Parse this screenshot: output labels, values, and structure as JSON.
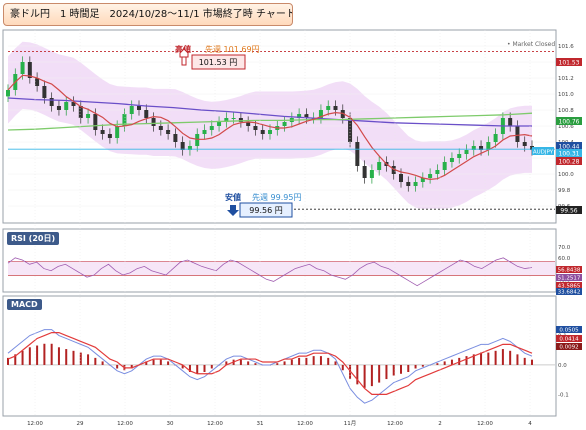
{
  "header": {
    "title": "豪ドル円　1 時間足　2024/10/28～11/1 市場終了時 チャート形状"
  },
  "market_status": "• Market Closed",
  "annotations": {
    "high": {
      "label": "高値",
      "prev_week": "先週 101.69円",
      "price_box": "101.53 円"
    },
    "low": {
      "label": "安値",
      "prev_week": "先週 99.95円",
      "price_box": "99.56 円"
    }
  },
  "right_tags": {
    "high_line": "101.53",
    "green": "100.76",
    "blue": "100.44",
    "ticker": "AUDJPY",
    "ticker_value": "100.31",
    "red": "100.28",
    "low_line": "99.56"
  },
  "rsi": {
    "label": "RSI (20日)",
    "tags": [
      "56.8438",
      "51.2517",
      "43.5865",
      "33.6842"
    ]
  },
  "macd": {
    "label": "MACD",
    "tags": [
      "0.0505",
      "0.0414",
      "0.0092"
    ]
  },
  "chart_data": [
    {
      "type": "candlestick",
      "title": "豪ドル円 1時間足",
      "x_ticks": [
        "12:00",
        "29",
        "12:00",
        "30",
        "12:00",
        "31",
        "12:00",
        "11月",
        "12:00",
        "2",
        "12:00",
        "4"
      ],
      "y_ticks": [
        99.6,
        99.8,
        100.0,
        100.2,
        100.4,
        100.6,
        100.8,
        101.0,
        101.2,
        101.4,
        101.6
      ],
      "ylim": [
        99.45,
        101.7
      ],
      "high_line": 101.53,
      "low_line": 99.56,
      "closes": [
        101.05,
        101.25,
        101.4,
        101.2,
        101.1,
        100.95,
        100.85,
        100.8,
        100.9,
        100.85,
        100.7,
        100.75,
        100.55,
        100.5,
        100.45,
        100.6,
        100.75,
        100.85,
        100.8,
        100.7,
        100.6,
        100.55,
        100.5,
        100.4,
        100.3,
        100.35,
        100.5,
        100.55,
        100.6,
        100.65,
        100.7,
        100.7,
        100.65,
        100.6,
        100.55,
        100.5,
        100.55,
        100.6,
        100.65,
        100.7,
        100.75,
        100.7,
        100.7,
        100.8,
        100.85,
        100.8,
        100.7,
        100.4,
        100.1,
        99.95,
        100.05,
        100.15,
        100.1,
        100.0,
        99.9,
        99.85,
        99.9,
        99.95,
        100.0,
        100.05,
        100.15,
        100.2,
        100.25,
        100.3,
        100.35,
        100.3,
        100.4,
        100.5,
        100.7,
        100.6,
        100.4,
        100.35,
        100.3
      ],
      "series": [
        {
          "name": "MA-blue",
          "values": [
            100.95,
            100.93,
            100.92,
            100.9,
            100.88,
            100.85,
            100.83,
            100.8,
            100.78,
            100.75,
            100.72,
            100.7,
            100.68,
            100.66,
            100.64,
            100.63,
            100.62,
            100.61,
            100.6,
            100.6
          ]
        },
        {
          "name": "MA-green",
          "values": [
            100.55,
            100.56,
            100.58,
            100.6,
            100.62,
            100.63,
            100.64,
            100.65,
            100.66,
            100.67,
            100.67,
            100.68,
            100.68,
            100.69,
            100.7,
            100.71,
            100.72,
            100.73,
            100.74,
            100.76
          ]
        }
      ]
    },
    {
      "type": "line",
      "title": "RSI (20日)",
      "ylim": [
        30,
        72
      ],
      "y_ticks": [
        30,
        40,
        50,
        60,
        70
      ],
      "values": [
        55,
        60,
        58,
        54,
        56,
        50,
        48,
        52,
        54,
        50,
        46,
        42,
        44,
        50,
        54,
        48,
        44,
        46,
        50,
        52,
        48,
        46,
        44,
        50,
        56,
        58,
        55,
        52,
        50,
        48,
        54,
        58,
        56,
        52,
        48,
        44,
        40,
        38,
        42,
        46,
        50,
        52,
        54,
        50,
        48,
        44,
        42,
        40,
        44,
        50,
        54,
        56,
        52,
        50,
        46,
        42,
        38,
        34,
        38,
        42,
        46,
        50,
        54,
        58,
        56,
        52,
        50,
        54,
        58,
        60,
        56,
        52,
        50,
        51
      ]
    },
    {
      "type": "bar",
      "title": "MACD",
      "ylim": [
        -0.16,
        0.18
      ],
      "y_ticks": [
        -0.1,
        0.0,
        0.1
      ],
      "values": [
        0.04,
        0.06,
        0.08,
        0.1,
        0.11,
        0.12,
        0.12,
        0.1,
        0.09,
        0.08,
        0.07,
        0.06,
        0.04,
        0.02,
        0.0,
        -0.02,
        -0.03,
        -0.02,
        0.0,
        0.02,
        0.03,
        0.03,
        0.02,
        0.0,
        -0.02,
        -0.04,
        -0.05,
        -0.04,
        -0.02,
        0.0,
        0.02,
        0.03,
        0.03,
        0.02,
        0.01,
        0.0,
        0.0,
        0.01,
        0.02,
        0.03,
        0.04,
        0.04,
        0.05,
        0.05,
        0.04,
        0.02,
        -0.03,
        -0.08,
        -0.11,
        -0.13,
        -0.12,
        -0.1,
        -0.08,
        -0.06,
        -0.05,
        -0.04,
        -0.02,
        -0.01,
        0.0,
        0.01,
        0.02,
        0.03,
        0.04,
        0.05,
        0.06,
        0.07,
        0.07,
        0.08,
        0.09,
        0.08,
        0.06,
        0.04,
        0.03
      ],
      "signal": [
        0.02,
        0.03,
        0.05,
        0.07,
        0.09,
        0.1,
        0.11,
        0.11,
        0.1,
        0.09,
        0.08,
        0.07,
        0.06,
        0.04,
        0.02,
        0.01,
        -0.01,
        -0.01,
        0.0,
        0.01,
        0.02,
        0.02,
        0.02,
        0.01,
        0.0,
        -0.02,
        -0.03,
        -0.03,
        -0.03,
        -0.02,
        0.0,
        0.01,
        0.02,
        0.02,
        0.02,
        0.01,
        0.01,
        0.01,
        0.02,
        0.02,
        0.03,
        0.03,
        0.04,
        0.04,
        0.04,
        0.03,
        0.01,
        -0.02,
        -0.05,
        -0.08,
        -0.1,
        -0.1,
        -0.1,
        -0.09,
        -0.08,
        -0.07,
        -0.05,
        -0.04,
        -0.03,
        -0.02,
        -0.01,
        0.0,
        0.01,
        0.02,
        0.03,
        0.04,
        0.05,
        0.06,
        0.07,
        0.07,
        0.06,
        0.05,
        0.04
      ]
    }
  ]
}
